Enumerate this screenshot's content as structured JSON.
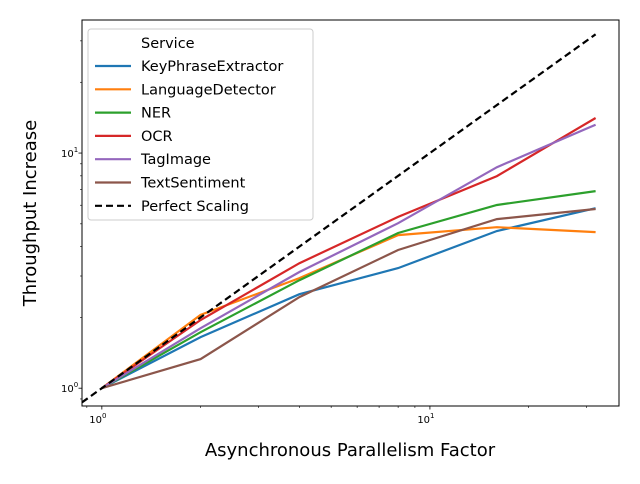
{
  "chart_data": {
    "type": "line",
    "xlabel": "Asynchronous Parallelism Factor",
    "ylabel": "Throughput Increase",
    "xscale": "log",
    "yscale": "log",
    "xlim": [
      0.87,
      37.7
    ],
    "ylim": [
      0.84,
      36.8
    ],
    "grid": false,
    "x_ticks": [
      {
        "value": 1,
        "base": "10",
        "exp": "0"
      },
      {
        "value": 10,
        "base": "10",
        "exp": "1"
      }
    ],
    "y_ticks": [
      {
        "value": 1,
        "base": "10",
        "exp": "0"
      },
      {
        "value": 10,
        "base": "10",
        "exp": "1"
      }
    ],
    "legend": {
      "title": "Service",
      "placement": "top-left"
    },
    "x": [
      1,
      2,
      4,
      8,
      16,
      32
    ],
    "series": [
      {
        "name": "KeyPhraseExtractor",
        "color": "#1f77b4",
        "dash": false,
        "values": [
          1,
          1.65,
          2.51,
          3.24,
          4.66,
          5.83
        ]
      },
      {
        "name": "LanguageDetector",
        "color": "#ff7f0e",
        "dash": false,
        "values": [
          1,
          2.05,
          2.94,
          4.48,
          4.84,
          4.61
        ]
      },
      {
        "name": "NER",
        "color": "#2ca02c",
        "dash": false,
        "values": [
          1,
          1.73,
          2.88,
          4.57,
          6.01,
          6.89
        ]
      },
      {
        "name": "OCR",
        "color": "#d62728",
        "dash": false,
        "values": [
          1,
          1.95,
          3.4,
          5.35,
          7.98,
          14.1
        ]
      },
      {
        "name": "TagImage",
        "color": "#9467bd",
        "dash": false,
        "values": [
          1,
          1.8,
          3.12,
          5.03,
          8.71,
          13.2
        ]
      },
      {
        "name": "TextSentiment",
        "color": "#8c564b",
        "dash": false,
        "values": [
          1,
          1.33,
          2.44,
          3.87,
          5.24,
          5.78
        ]
      },
      {
        "name": "Perfect Scaling",
        "color": "#000000",
        "dash": true,
        "x": [
          0.87,
          32
        ],
        "values": [
          0.87,
          32
        ]
      }
    ]
  }
}
